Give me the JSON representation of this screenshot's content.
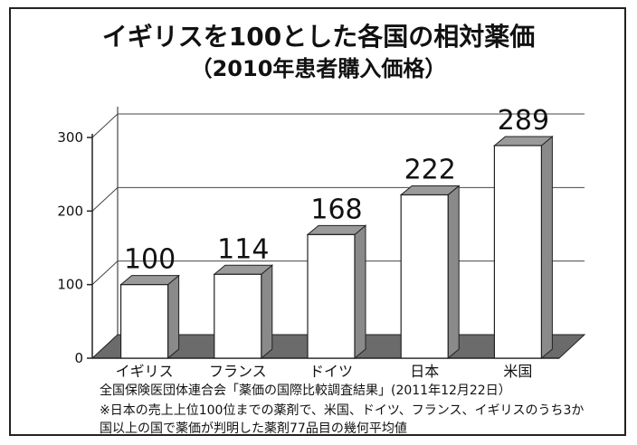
{
  "chart_data": {
    "type": "bar",
    "title": "イギリスを100とした各国の相対薬価",
    "subtitle": "（2010年患者購入価格）",
    "categories": [
      "イギリス",
      "フランス",
      "ドイツ",
      "日本",
      "米国"
    ],
    "values": [
      100,
      114,
      168,
      222,
      289
    ],
    "ylim": [
      0,
      300
    ],
    "yticks": [
      0,
      100,
      200,
      300
    ],
    "grid": true,
    "style": "3d",
    "bar_color": "#ffffff",
    "floor_color": "#6b6b6b",
    "side_color": "#8a8a8a",
    "top_color": "#9a9a9a"
  },
  "notes": [
    "全国保険医団体連合会「薬価の国際比較調査結果」(2011年12月22日）",
    "※日本の売上上位100位までの薬剤で、米国、ドイツ、フランス、イギリスのうち3か",
    "国以上の国で薬価が判明した薬剤77品目の幾何平均値"
  ]
}
